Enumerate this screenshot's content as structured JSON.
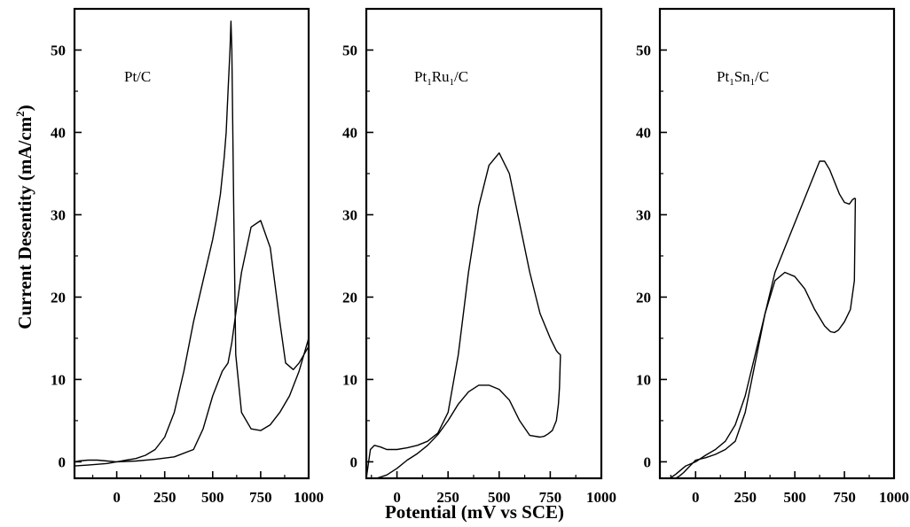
{
  "chart_data": {
    "type": "line",
    "ylabel_main": "Current Desentity (mA/cm",
    "ylabel_sup": "2",
    "ylabel_close": ")",
    "xlabel": "Potential (mV vs SCE)",
    "ylim": [
      -2,
      55
    ],
    "y_ticks": [
      0,
      10,
      20,
      30,
      40,
      50
    ],
    "x_ticks": [
      0,
      250,
      500,
      750,
      1000
    ],
    "panels": [
      {
        "label_parts": [
          {
            "t": "Pt/C"
          }
        ],
        "xlim": [
          -220,
          1000
        ],
        "curves": [
          {
            "x": [
              -220,
              -150,
              -100,
              -50,
              0,
              50,
              100,
              150,
              200,
              250,
              300,
              350,
              400,
              450,
              500,
              520,
              540,
              560,
              570,
              580,
              590,
              595,
              600,
              610,
              620,
              650,
              700,
              750,
              800,
              850,
              900,
              950,
              1000
            ],
            "y": [
              -0.5,
              -0.4,
              -0.3,
              -0.2,
              0,
              0.2,
              0.4,
              0.8,
              1.5,
              3,
              6,
              11,
              17,
              22,
              27,
              29.5,
              32.5,
              37,
              40,
              45,
              50,
              53.5,
              50,
              30,
              13,
              6,
              4,
              3.8,
              4.5,
              6,
              8,
              11,
              15
            ]
          },
          {
            "x": [
              -220,
              -200,
              -150,
              -100,
              -50,
              0,
              100,
              200,
              300,
              400,
              450,
              500,
              550,
              580,
              600,
              620,
              650,
              700,
              750,
              800,
              850,
              880,
              920,
              950,
              1000
            ],
            "y": [
              0,
              0.1,
              0.2,
              0.2,
              0.1,
              0,
              0.1,
              0.3,
              0.6,
              1.5,
              4,
              8,
              11,
              12,
              14.5,
              18,
              23,
              28.5,
              29.3,
              26,
              17,
              12,
              11.2,
              12,
              14
            ]
          }
        ]
      },
      {
        "label_parts": [
          {
            "t": "Pt"
          },
          {
            "t": "1",
            "sub": true
          },
          {
            "t": "Ru"
          },
          {
            "t": "1",
            "sub": true
          },
          {
            "t": "/C"
          }
        ],
        "xlim": [
          -150,
          1000
        ],
        "curves": [
          {
            "x": [
              -150,
              -130,
              -110,
              -80,
              -50,
              0,
              50,
              100,
              150,
              200,
              250,
              300,
              350,
              400,
              450,
              500,
              550,
              600,
              650,
              700,
              750,
              780,
              790,
              800
            ],
            "y": [
              -2,
              1.5,
              2.0,
              1.8,
              1.5,
              1.5,
              1.7,
              2.0,
              2.5,
              3.5,
              6,
              13,
              23,
              31,
              36,
              37.5,
              35,
              29,
              23,
              18,
              15,
              13.5,
              13.2,
              13
            ]
          },
          {
            "x": [
              800,
              795,
              790,
              780,
              760,
              740,
              720,
              700,
              650,
              600,
              550,
              500,
              450,
              400,
              350,
              300,
              250,
              200,
              150,
              100,
              50,
              0,
              -50,
              -100,
              -150
            ],
            "y": [
              13,
              9,
              7,
              5,
              3.8,
              3.4,
              3.1,
              3,
              3.2,
              5,
              7.5,
              8.8,
              9.3,
              9.3,
              8.5,
              7,
              5,
              3.3,
              2,
              1,
              0.2,
              -0.8,
              -1.6,
              -2,
              -2
            ]
          }
        ]
      },
      {
        "label_parts": [
          {
            "t": "Pt"
          },
          {
            "t": "1",
            "sub": true
          },
          {
            "t": "Sn"
          },
          {
            "t": "1",
            "sub": true
          },
          {
            "t": "/C"
          }
        ],
        "xlim": [
          -180,
          1000
        ],
        "curves": [
          {
            "x": [
              -130,
              -100,
              -50,
              0,
              50,
              100,
              150,
              200,
              250,
              300,
              350,
              400,
              450,
              500,
              550,
              600,
              625,
              650,
              675,
              700,
              725,
              750,
              775,
              790,
              800,
              805
            ],
            "y": [
              -2,
              -1.5,
              -0.5,
              0,
              0.8,
              1.5,
              2.5,
              4.5,
              8,
              13,
              18,
              23,
              26,
              29,
              32,
              35,
              36.5,
              36.5,
              35.5,
              34,
              32.5,
              31.5,
              31.3,
              31.8,
              32,
              32
            ]
          },
          {
            "x": [
              805,
              800,
              780,
              750,
              720,
              700,
              680,
              650,
              600,
              550,
              500,
              450,
              400,
              350,
              300,
              250,
              200,
              150,
              100,
              50,
              0,
              -20,
              -40,
              -60,
              -80,
              -100,
              -120
            ],
            "y": [
              32,
              22,
              18.5,
              17,
              16,
              15.7,
              15.8,
              16.5,
              18.5,
              21,
              22.5,
              23,
              22,
              18,
              12,
              6,
              2.5,
              1.5,
              0.9,
              0.5,
              0.2,
              -0.3,
              -0.8,
              -1.3,
              -1.7,
              -2,
              -2
            ]
          }
        ]
      }
    ]
  }
}
